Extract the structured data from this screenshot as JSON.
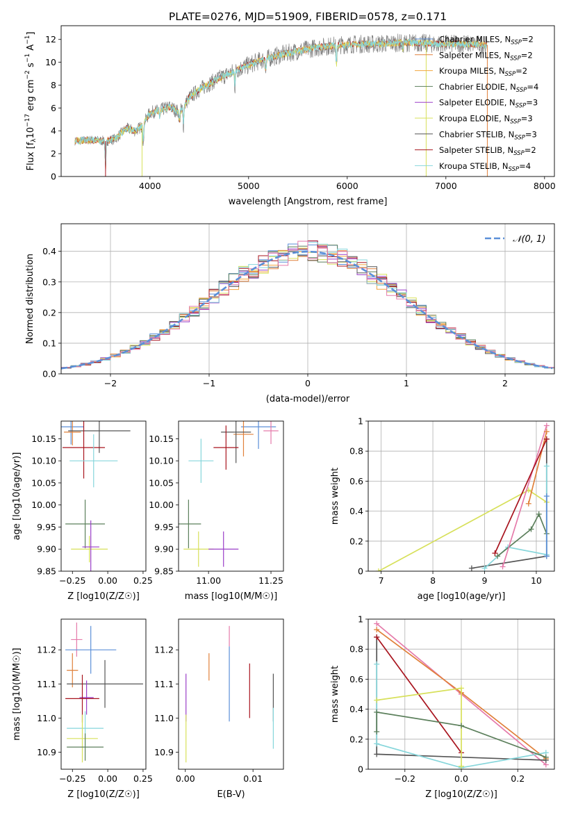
{
  "colors": {
    "chabrier_miles": "#5b8fd8",
    "salpeter_miles": "#e0803a",
    "kroupa_miles": "#f2a43c",
    "chabrier_elodie": "#5b7f5b",
    "salpeter_elodie": "#9a3ec8",
    "kroupa_elodie": "#d7e05a",
    "chabrier_stelib": "#555555",
    "salpeter_stelib": "#a8141e",
    "kroupa_stelib": "#86d6db",
    "pink": "#e57aaa",
    "gaussian": "#5b8fd8"
  },
  "chart_data": [
    {
      "id": "spectrum",
      "type": "line",
      "title": "PLATE=0276, MJD=51909, FIBERID=0578, z=0.171",
      "xlabel": "wavelength [Angstrom, rest frame]",
      "ylabel": "Flux [f_λ 10^-17 erg cm^-2 s^-1 A^-1]",
      "xlim": [
        3100,
        8100
      ],
      "ylim": [
        0,
        13.2
      ],
      "xticks": [
        4000,
        5000,
        6000,
        7000,
        8000
      ],
      "yticks": [
        0,
        2,
        4,
        6,
        8,
        10,
        12
      ],
      "grid": false,
      "legend_position": "top-right",
      "continuum": [
        [
          3240,
          3.1
        ],
        [
          3400,
          3.2
        ],
        [
          3550,
          3.1
        ],
        [
          3650,
          3.3
        ],
        [
          3760,
          4.2
        ],
        [
          3850,
          4.0
        ],
        [
          3920,
          4.4
        ],
        [
          4000,
          5.6
        ],
        [
          4100,
          5.8
        ],
        [
          4200,
          6.1
        ],
        [
          4300,
          5.6
        ],
        [
          4400,
          6.9
        ],
        [
          4500,
          7.6
        ],
        [
          4700,
          8.6
        ],
        [
          4900,
          9.4
        ],
        [
          5100,
          10.1
        ],
        [
          5300,
          10.6
        ],
        [
          5500,
          11.0
        ],
        [
          5700,
          11.3
        ],
        [
          5900,
          11.5
        ],
        [
          6100,
          11.6
        ],
        [
          6300,
          11.6
        ],
        [
          6500,
          11.7
        ],
        [
          6700,
          11.7
        ],
        [
          6900,
          11.6
        ],
        [
          7100,
          11.6
        ],
        [
          7300,
          11.6
        ],
        [
          7420,
          11.5
        ]
      ],
      "absorption_features": [
        [
          3550,
          0.1
        ],
        [
          3933,
          2.4
        ],
        [
          4101,
          5.0
        ],
        [
          4300,
          4.6
        ],
        [
          4340,
          4.4
        ],
        [
          4861,
          7.8
        ],
        [
          5175,
          9.0
        ],
        [
          5890,
          9.2
        ],
        [
          6563,
          11.0
        ]
      ],
      "legend": [
        {
          "label": "Chabrier MILES, N",
          "sub": "SSP",
          "suffix": "=2",
          "color": "chabrier_miles"
        },
        {
          "label": "Salpeter MILES, N",
          "sub": "SSP",
          "suffix": "=2",
          "color": "salpeter_miles"
        },
        {
          "label": "Kroupa MILES, N",
          "sub": "SSP",
          "suffix": "=2",
          "color": "kroupa_miles"
        },
        {
          "label": "Chabrier ELODIE, N",
          "sub": "SSP",
          "suffix": "=4",
          "color": "chabrier_elodie"
        },
        {
          "label": "Salpeter ELODIE, N",
          "sub": "SSP",
          "suffix": "=3",
          "color": "salpeter_elodie"
        },
        {
          "label": "Kroupa ELODIE, N",
          "sub": "SSP",
          "suffix": "=3",
          "color": "kroupa_elodie"
        },
        {
          "label": "Chabrier STELIB, N",
          "sub": "SSP",
          "suffix": "=3",
          "color": "chabrier_stelib"
        },
        {
          "label": "Salpeter STELIB, N",
          "sub": "SSP",
          "suffix": "=2",
          "color": "salpeter_stelib"
        },
        {
          "label": "Kroupa STELIB, N",
          "sub": "SSP",
          "suffix": "=4",
          "color": "kroupa_stelib"
        }
      ]
    },
    {
      "id": "residuals",
      "type": "line",
      "xlabel": "(data-model)/error",
      "ylabel": "Normed distribution",
      "xlim": [
        -2.5,
        2.5
      ],
      "ylim": [
        0,
        0.49
      ],
      "xticks": [
        -2,
        -1,
        0,
        1,
        2
      ],
      "yticks": [
        0.0,
        0.1,
        0.2,
        0.3,
        0.4
      ],
      "grid": true,
      "legend_position": "top-right",
      "legend_label": "𝒩(0, 1)",
      "bin_width": 0.1,
      "histogram_colors": [
        "chabrier_miles",
        "salpeter_miles",
        "kroupa_miles",
        "chabrier_elodie",
        "salpeter_elodie",
        "kroupa_elodie",
        "chabrier_stelib",
        "salpeter_stelib",
        "kroupa_stelib",
        "pink"
      ]
    },
    {
      "id": "age_vs_Z",
      "type": "scatter",
      "xlabel": "Z [log10(Z/Z☉)]",
      "ylabel": "age  [log10(age/yr)]",
      "xlim": [
        -0.33,
        0.27
      ],
      "ylim": [
        9.85,
        10.19
      ],
      "xticks": [
        -0.25,
        0.0,
        0.25
      ],
      "xticklabels": [
        "−0.25",
        "0.00",
        "0.25"
      ],
      "yticks": [
        9.85,
        9.9,
        9.95,
        10.0,
        10.05,
        10.1,
        10.15
      ],
      "yticklabels": [
        "9.85",
        "9.90",
        "9.95",
        "10.00",
        "10.05",
        "10.10",
        "10.15"
      ],
      "grid": false,
      "points": [
        {
          "x": -0.26,
          "xerr": 0.09,
          "y": 10.177,
          "yerr": 0.04,
          "color": "chabrier_miles"
        },
        {
          "x": -0.25,
          "xerr": 0.06,
          "y": 10.165,
          "yerr": 0.03,
          "color": "salpeter_miles"
        },
        {
          "x": -0.06,
          "xerr": 0.22,
          "y": 10.168,
          "yerr": 0.05,
          "color": "chabrier_stelib"
        },
        {
          "x": -0.17,
          "xerr": 0.15,
          "y": 10.13,
          "yerr": 0.07,
          "color": "salpeter_stelib"
        },
        {
          "x": -0.1,
          "xerr": 0.17,
          "y": 10.1,
          "yerr": 0.06,
          "color": "kroupa_stelib"
        },
        {
          "x": -0.16,
          "xerr": 0.14,
          "y": 9.957,
          "yerr": 0.055,
          "color": "chabrier_elodie"
        },
        {
          "x": -0.13,
          "xerr": 0.13,
          "y": 9.9,
          "yerr": 0.03,
          "color": "kroupa_elodie"
        },
        {
          "x": -0.12,
          "xerr": 0.06,
          "y": 9.905,
          "yerr": 0.06,
          "color": "salpeter_elodie"
        }
      ]
    },
    {
      "id": "age_vs_mass",
      "type": "scatter",
      "xlabel": "mass [log10(M/M☉)]",
      "xlim": [
        10.88,
        11.3
      ],
      "ylim": [
        9.85,
        10.19
      ],
      "xticks": [
        11.0,
        11.25
      ],
      "xticklabels": [
        "11.00",
        "11.25"
      ],
      "yticks": [
        9.85,
        9.9,
        9.95,
        10.0,
        10.05,
        10.1,
        10.15
      ],
      "yticklabels": [
        "9.85",
        "9.90",
        "9.95",
        "10.00",
        "10.05",
        "10.10",
        "10.15"
      ],
      "grid": false,
      "points": [
        {
          "x": 11.2,
          "xerr": 0.07,
          "y": 10.177,
          "yerr": 0.05,
          "color": "chabrier_miles"
        },
        {
          "x": 11.14,
          "xerr": 0.04,
          "y": 10.16,
          "yerr": 0.05,
          "color": "salpeter_miles"
        },
        {
          "x": 11.25,
          "xerr": 0.03,
          "y": 10.168,
          "yerr": 0.03,
          "color": "pink"
        },
        {
          "x": 11.11,
          "xerr": 0.06,
          "y": 10.165,
          "yerr": 0.07,
          "color": "chabrier_stelib"
        },
        {
          "x": 11.07,
          "xerr": 0.05,
          "y": 10.13,
          "yerr": 0.05,
          "color": "salpeter_stelib"
        },
        {
          "x": 10.97,
          "xerr": 0.05,
          "y": 10.1,
          "yerr": 0.05,
          "color": "kroupa_stelib"
        },
        {
          "x": 10.92,
          "xerr": 0.05,
          "y": 9.957,
          "yerr": 0.055,
          "color": "chabrier_elodie"
        },
        {
          "x": 10.96,
          "xerr": 0.06,
          "y": 9.9,
          "yerr": 0.04,
          "color": "kroupa_elodie"
        },
        {
          "x": 11.06,
          "xerr": 0.06,
          "y": 9.9,
          "yerr": 0.04,
          "color": "salpeter_elodie"
        }
      ]
    },
    {
      "id": "weight_vs_age",
      "type": "line",
      "xlabel": "age  [log10(age/yr)]",
      "ylabel": "mass weight",
      "xlim": [
        6.75,
        10.35
      ],
      "ylim": [
        0,
        1.0
      ],
      "xticks": [
        7,
        8,
        9,
        10
      ],
      "yticks": [
        0.0,
        0.2,
        0.4,
        0.6,
        0.8,
        1.0
      ],
      "grid": true,
      "series": [
        {
          "color": "kroupa_elodie",
          "x": [
            6.95,
            9.85,
            10.2
          ],
          "y": [
            0.0,
            0.54,
            0.46
          ]
        },
        {
          "color": "chabrier_stelib",
          "x": [
            8.75,
            10.2,
            10.2
          ],
          "y": [
            0.02,
            0.1,
            0.88
          ]
        },
        {
          "color": "kroupa_stelib",
          "x": [
            9.0,
            9.45,
            10.2,
            10.2
          ],
          "y": [
            0.02,
            0.16,
            0.11,
            0.7
          ]
        },
        {
          "color": "chabrier_elodie",
          "x": [
            9.25,
            9.9,
            10.05,
            10.2
          ],
          "y": [
            0.1,
            0.28,
            0.38,
            0.25
          ]
        },
        {
          "color": "pink",
          "x": [
            9.35,
            10.2
          ],
          "y": [
            0.03,
            0.97
          ]
        },
        {
          "color": "chabrier_miles",
          "x": [
            10.2,
            10.2
          ],
          "y": [
            0.5,
            0.1
          ]
        },
        {
          "color": "salpeter_miles",
          "x": [
            9.85,
            10.2
          ],
          "y": [
            0.45,
            0.93
          ]
        },
        {
          "color": "salpeter_stelib",
          "x": [
            9.2,
            10.2
          ],
          "y": [
            0.12,
            0.88
          ]
        }
      ]
    },
    {
      "id": "mass_vs_Z",
      "type": "scatter",
      "xlabel": "Z [log10(Z/Z☉)]",
      "ylabel": "mass [log10(M/M☉)]",
      "xlim": [
        -0.33,
        0.27
      ],
      "ylim": [
        10.85,
        11.29
      ],
      "xticks": [
        -0.25,
        0.0,
        0.25
      ],
      "xticklabels": [
        "−0.25",
        "0.00",
        "0.25"
      ],
      "yticks": [
        10.9,
        11.0,
        11.1,
        11.2
      ],
      "yticklabels": [
        "10.9",
        "11.0",
        "11.1",
        "11.2"
      ],
      "grid": false,
      "points": [
        {
          "x": -0.22,
          "xerr": 0.04,
          "y": 11.23,
          "yerr": 0.05,
          "color": "pink"
        },
        {
          "x": -0.12,
          "xerr": 0.18,
          "y": 11.2,
          "yerr": 0.07,
          "color": "chabrier_miles"
        },
        {
          "x": -0.25,
          "xerr": 0.04,
          "y": 11.14,
          "yerr": 0.05,
          "color": "salpeter_miles"
        },
        {
          "x": -0.02,
          "xerr": 0.27,
          "y": 11.1,
          "yerr": 0.07,
          "color": "chabrier_stelib"
        },
        {
          "x": -0.15,
          "xerr": 0.05,
          "y": 11.06,
          "yerr": 0.05,
          "color": "salpeter_elodie"
        },
        {
          "x": -0.18,
          "xerr": 0.12,
          "y": 11.057,
          "yerr": 0.07,
          "color": "salpeter_stelib"
        },
        {
          "x": -0.16,
          "xerr": 0.13,
          "y": 10.97,
          "yerr": 0.05,
          "color": "kroupa_stelib"
        },
        {
          "x": -0.18,
          "xerr": 0.11,
          "y": 10.94,
          "yerr": 0.07,
          "color": "kroupa_elodie"
        },
        {
          "x": -0.16,
          "xerr": 0.13,
          "y": 10.915,
          "yerr": 0.04,
          "color": "chabrier_elodie"
        }
      ]
    },
    {
      "id": "mass_vs_ebv",
      "type": "scatter",
      "xlabel": "E(B-V)",
      "xlim": [
        -0.001,
        0.0145
      ],
      "ylim": [
        10.85,
        11.29
      ],
      "xticks": [
        0.0,
        0.01
      ],
      "xticklabels": [
        "0.00",
        "0.01"
      ],
      "yticks": [
        10.9,
        11.0,
        11.1,
        11.2
      ],
      "yticklabels": [
        "10.9",
        "11.0",
        "11.1",
        "11.2"
      ],
      "grid": false,
      "points": [
        {
          "x": 0.0065,
          "y": 11.24,
          "yerr": 0.03,
          "color": "pink"
        },
        {
          "x": 0.0035,
          "y": 11.15,
          "yerr": 0.04,
          "color": "salpeter_miles"
        },
        {
          "x": 0.0065,
          "y": 11.1,
          "yerr": 0.11,
          "color": "chabrier_miles"
        },
        {
          "x": 0.0095,
          "y": 11.08,
          "yerr": 0.08,
          "color": "salpeter_stelib"
        },
        {
          "x": 0.013,
          "y": 11.06,
          "yerr": 0.07,
          "color": "chabrier_stelib"
        },
        {
          "x": 0.013,
          "y": 10.97,
          "yerr": 0.06,
          "color": "kroupa_stelib"
        },
        {
          "x": 0.0001,
          "y": 11.06,
          "yerr": 0.07,
          "color": "salpeter_elodie"
        },
        {
          "x": 0.0001,
          "y": 10.94,
          "yerr": 0.07,
          "color": "kroupa_elodie"
        }
      ]
    },
    {
      "id": "weight_vs_Z",
      "type": "line",
      "xlabel": "Z [log10(Z/Z☉)]",
      "ylabel": "mass weight",
      "xlim": [
        -0.33,
        0.33
      ],
      "ylim": [
        0,
        1.0
      ],
      "xticks": [
        -0.2,
        0.0,
        0.2
      ],
      "xticklabels": [
        "−0.2",
        "0.0",
        "0.2"
      ],
      "yticks": [
        0.0,
        0.2,
        0.4,
        0.6,
        0.8,
        1.0
      ],
      "grid": true,
      "series": [
        {
          "color": "pink",
          "x": [
            -0.3,
            0.0,
            0.3
          ],
          "y": [
            0.97,
            0.5,
            0.03
          ]
        },
        {
          "color": "salpeter_miles",
          "x": [
            -0.3,
            0.0,
            0.3
          ],
          "y": [
            0.93,
            0.51,
            0.07
          ]
        },
        {
          "color": "chabrier_stelib",
          "x": [
            -0.3,
            -0.3,
            0.3
          ],
          "y": [
            0.88,
            0.1,
            0.06
          ]
        },
        {
          "color": "salpeter_stelib",
          "x": [
            -0.3,
            0.0
          ],
          "y": [
            0.88,
            0.11
          ]
        },
        {
          "color": "kroupa_stelib",
          "x": [
            -0.3,
            -0.3,
            0.0,
            0.3
          ],
          "y": [
            0.7,
            0.17,
            0.01,
            0.11
          ]
        },
        {
          "color": "kroupa_elodie",
          "x": [
            -0.3,
            0.0,
            0.0
          ],
          "y": [
            0.46,
            0.54,
            0.02
          ]
        },
        {
          "color": "chabrier_elodie",
          "x": [
            -0.3,
            -0.3,
            0.0,
            0.3
          ],
          "y": [
            0.25,
            0.38,
            0.29,
            0.08
          ]
        }
      ]
    }
  ]
}
